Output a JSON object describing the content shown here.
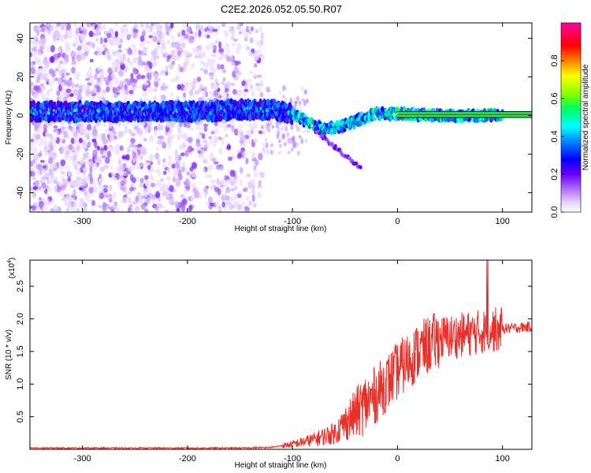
{
  "title": "C2E2.2026.052.05.50.R07",
  "chart_data": [
    {
      "type": "heatmap",
      "title": "C2E2.2026.052.05.50.R07",
      "xlabel": "Height of straight line (km)",
      "ylabel": "Frequency (Hz)",
      "xlim": [
        -350,
        128
      ],
      "ylim": [
        -50,
        48
      ],
      "xticks": [
        -300,
        -200,
        -100,
        0,
        100
      ],
      "yticks": [
        -40,
        -20,
        0,
        20,
        40
      ],
      "colorbar": {
        "label": "Normalized spectral amplitude",
        "range": [
          0,
          1
        ],
        "ticks": [
          "0.0",
          "0.2",
          "0.4",
          "0.6",
          "0.8"
        ],
        "colors": [
          "#ffffff",
          "#e6d2ff",
          "#b070ff",
          "#6a00ff",
          "#0000ff",
          "#0090ff",
          "#00ffff",
          "#00ff60",
          "#80ff00",
          "#ffff00",
          "#ff8000",
          "#ff0000",
          "#ff0060",
          "#ff00a0"
        ]
      },
      "ridge": [
        {
          "x": -350,
          "f": 2
        },
        {
          "x": -300,
          "f": 2
        },
        {
          "x": -250,
          "f": 2
        },
        {
          "x": -200,
          "f": 2
        },
        {
          "x": -150,
          "f": 3
        },
        {
          "x": -120,
          "f": 3
        },
        {
          "x": -100,
          "f": 1
        },
        {
          "x": -90,
          "f": -2
        },
        {
          "x": -80,
          "f": -5
        },
        {
          "x": -70,
          "f": -7
        },
        {
          "x": -60,
          "f": -6
        },
        {
          "x": -50,
          "f": -5
        },
        {
          "x": -40,
          "f": -3
        },
        {
          "x": -30,
          "f": -1
        },
        {
          "x": -20,
          "f": 1
        },
        {
          "x": -10,
          "f": 1
        },
        {
          "x": 0,
          "f": 1
        },
        {
          "x": 50,
          "f": 0
        },
        {
          "x": 100,
          "f": 0
        },
        {
          "x": 128,
          "f": 0
        }
      ]
    },
    {
      "type": "line",
      "xlabel": "Height of straight line (km)",
      "ylabel": "SNR (10 * v/v)",
      "scale_label": "(x10",
      "scale_exp": "4",
      "xlim": [
        -350,
        128
      ],
      "ylim": [
        0,
        2.9
      ],
      "xticks": [
        -300,
        -200,
        -100,
        0,
        100
      ],
      "yticks": [
        "0.5",
        "1.0",
        "1.5",
        "2.0",
        "2.5"
      ],
      "color": "#e8302a",
      "series": [
        {
          "name": "SNR",
          "x": [
            -350,
            -300,
            -250,
            -200,
            -150,
            -120,
            -100,
            -80,
            -60,
            -40,
            -20,
            0,
            20,
            40,
            60,
            80,
            100,
            128
          ],
          "values": [
            0.02,
            0.02,
            0.02,
            0.02,
            0.02,
            0.03,
            0.08,
            0.15,
            0.25,
            0.55,
            0.85,
            1.2,
            1.5,
            1.7,
            1.75,
            1.8,
            1.85,
            1.88
          ]
        }
      ]
    }
  ]
}
